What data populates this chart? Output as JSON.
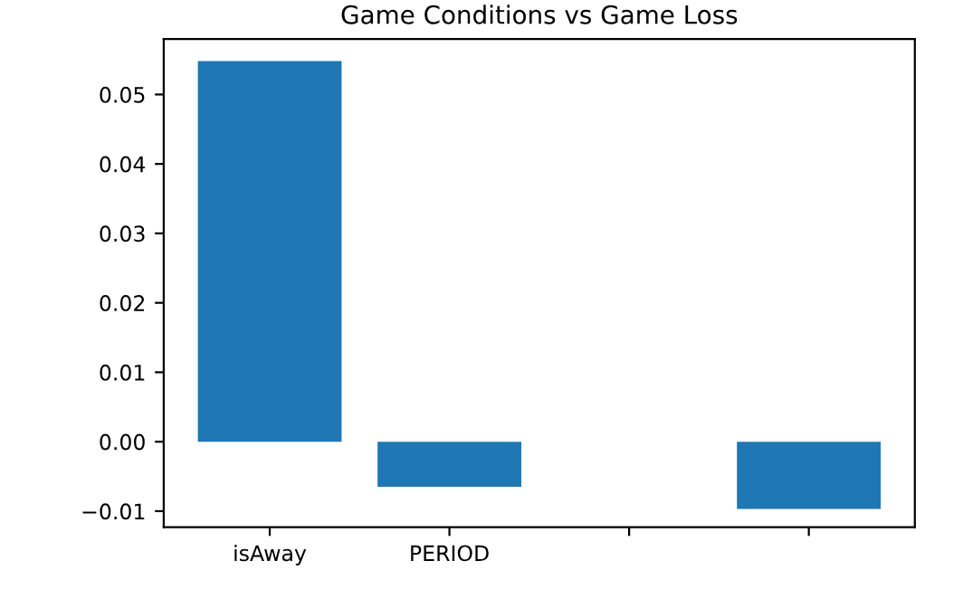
{
  "chart_data": {
    "type": "bar",
    "title": "Game Conditions vs Game Loss",
    "categories": [
      "isAway",
      "PERIOD",
      null,
      null
    ],
    "values": [
      0.0548,
      -0.0065,
      0.0,
      -0.0097
    ],
    "color": "#1f77b4",
    "ylim": [
      -0.0123,
      0.058
    ],
    "yticks": [
      {
        "value": -0.01,
        "label": "−0.01"
      },
      {
        "value": 0.0,
        "label": "0.00"
      },
      {
        "value": 0.01,
        "label": "0.01"
      },
      {
        "value": 0.02,
        "label": "0.02"
      },
      {
        "value": 0.03,
        "label": "0.03"
      },
      {
        "value": 0.04,
        "label": "0.04"
      },
      {
        "value": 0.05,
        "label": "0.05"
      }
    ],
    "grid": false
  }
}
